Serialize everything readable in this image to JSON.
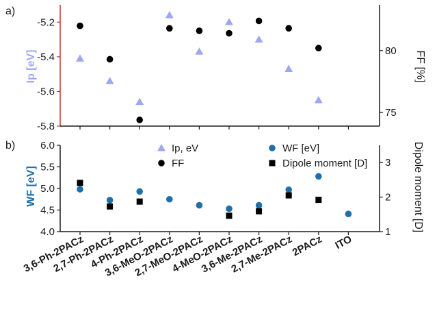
{
  "chart_data": [
    {
      "panel_label": "a)",
      "type": "scatter",
      "categories": [
        "3,6-Ph-2PACz",
        "2,7-Ph-2PACz",
        "4-Ph-2PACz",
        "3,6-MeO-2PACz",
        "2,7-MeO-2PACz",
        "4-MeO-2PACz",
        "3,6-Me-2PACz",
        "2,7-Me-2PACz",
        "2PACz",
        "ITO"
      ],
      "ylabel": "Ip [eV]",
      "ylim": [
        -5.8,
        -5.1
      ],
      "yticks": [
        "-5.8",
        "-5.6",
        "-5.4",
        "-5.2"
      ],
      "y2label": "FF [%]",
      "y2lim": [
        73.9,
        83.7
      ],
      "y2ticks": [
        "75",
        "80"
      ],
      "series": [
        {
          "name": "Ip, eV",
          "axis": "left",
          "marker": "triangle",
          "color": "#9ea7f2",
          "values": [
            -5.41,
            -5.54,
            -5.66,
            -5.16,
            -5.37,
            -5.2,
            -5.3,
            -5.47,
            -5.65,
            null
          ]
        },
        {
          "name": "FF",
          "axis": "right",
          "marker": "circle",
          "color": "#000000",
          "values": [
            82.0,
            79.3,
            74.4,
            81.8,
            81.6,
            81.4,
            82.4,
            81.8,
            80.2,
            null
          ]
        }
      ],
      "left_axis_color": "#c0392b",
      "ylabel_color": "#9ea7f2",
      "grid": false
    },
    {
      "panel_label": "b)",
      "type": "scatter",
      "categories": [
        "3,6-Ph-2PACz",
        "2,7-Ph-2PACz",
        "4-Ph-2PACz",
        "3,6-MeO-2PACz",
        "2,7-MeO-2PACz",
        "4-MeO-2PACz",
        "3,6-Me-2PACz",
        "2,7-Me-2PACz",
        "2PACz",
        "ITO"
      ],
      "ylabel": "WF [eV]",
      "ylim": [
        4.0,
        6.0
      ],
      "yticks": [
        "4.0",
        "4.5",
        "5.0",
        "5.5",
        "6.0"
      ],
      "y2label": "Dipole moment [D]",
      "y2lim": [
        1.0,
        3.5
      ],
      "y2ticks": [
        "1",
        "2",
        "3"
      ],
      "series": [
        {
          "name": "WF [eV]",
          "axis": "left",
          "marker": "circle",
          "color": "#1f6fa8",
          "values": [
            4.98,
            4.73,
            4.93,
            4.75,
            4.61,
            4.53,
            4.61,
            4.97,
            5.28,
            4.41
          ]
        },
        {
          "name": "Dipole moment [D]",
          "axis": "right",
          "marker": "square",
          "color": "#000000",
          "values": [
            2.41,
            1.73,
            1.87,
            null,
            null,
            1.46,
            1.59,
            2.05,
            1.92,
            null
          ]
        }
      ],
      "ylabel_color": "#1f6fa8",
      "grid": false
    }
  ],
  "legend": {
    "placement": "top-center of panel b",
    "items": [
      {
        "label": "Ip, eV",
        "marker": "triangle",
        "color": "#9ea7f2"
      },
      {
        "label": "WF [eV]",
        "marker": "circle",
        "color": "#1f6fa8"
      },
      {
        "label": "FF",
        "marker": "circle",
        "color": "#000000"
      },
      {
        "label": "Dipole moment [D]",
        "marker": "square",
        "color": "#000000"
      }
    ]
  }
}
